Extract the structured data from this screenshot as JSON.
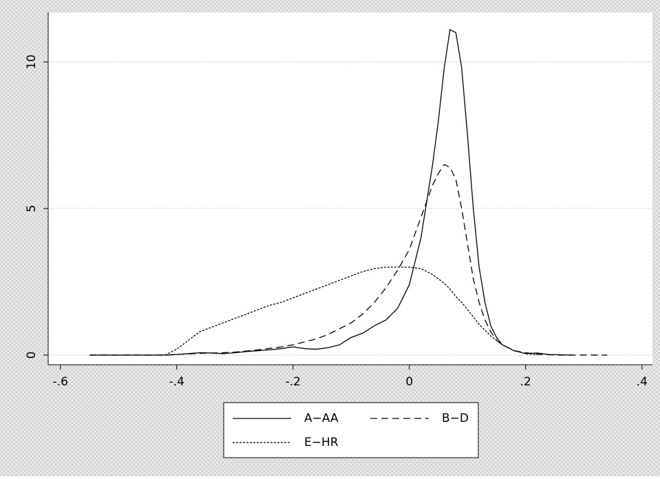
{
  "chart_data": {
    "type": "line",
    "x": [
      -0.55,
      -0.5,
      -0.45,
      -0.42,
      -0.4,
      -0.38,
      -0.36,
      -0.34,
      -0.32,
      -0.3,
      -0.28,
      -0.26,
      -0.24,
      -0.22,
      -0.2,
      -0.18,
      -0.16,
      -0.14,
      -0.12,
      -0.1,
      -0.08,
      -0.06,
      -0.04,
      -0.02,
      0,
      0.02,
      0.04,
      0.05,
      0.06,
      0.07,
      0.08,
      0.09,
      0.1,
      0.11,
      0.12,
      0.13,
      0.14,
      0.15,
      0.16,
      0.18,
      0.2,
      0.22,
      0.24,
      0.26,
      0.28,
      0.3,
      0.32,
      0.34
    ],
    "series": [
      {
        "name": "A−AA",
        "color": "#000000",
        "style": "solid",
        "values": [
          0,
          0,
          0,
          0,
          0.02,
          0.05,
          0.08,
          0.07,
          0.05,
          0.08,
          0.12,
          0.15,
          0.18,
          0.22,
          0.28,
          0.22,
          0.2,
          0.25,
          0.35,
          0.6,
          0.75,
          1.0,
          1.2,
          1.6,
          2.4,
          4.0,
          6.5,
          8.0,
          9.8,
          11.1,
          11.0,
          9.8,
          7.5,
          5.0,
          3.0,
          1.8,
          1.0,
          0.6,
          0.35,
          0.15,
          0.05,
          0.07,
          0.02,
          0.01,
          0,
          null,
          null,
          null
        ]
      },
      {
        "name": "B−D",
        "color": "#000000",
        "style": "dashed",
        "values": [
          0,
          0,
          0,
          0,
          0.02,
          0.04,
          0.06,
          0.07,
          0.08,
          0.1,
          0.14,
          0.18,
          0.23,
          0.28,
          0.35,
          0.45,
          0.55,
          0.7,
          0.9,
          1.1,
          1.4,
          1.8,
          2.3,
          2.9,
          3.6,
          4.7,
          5.8,
          6.2,
          6.5,
          6.4,
          6.0,
          5.0,
          3.8,
          2.6,
          1.8,
          1.2,
          0.8,
          0.5,
          0.35,
          0.15,
          0.08,
          0.03,
          0.01,
          0,
          0,
          0,
          0,
          0
        ]
      },
      {
        "name": "E−HR",
        "color": "#000000",
        "style": "dotted",
        "values": [
          null,
          null,
          null,
          0,
          0.2,
          0.5,
          0.8,
          0.95,
          1.1,
          1.25,
          1.4,
          1.55,
          1.7,
          1.8,
          1.95,
          2.1,
          2.25,
          2.4,
          2.55,
          2.7,
          2.85,
          2.95,
          3.0,
          3.0,
          3.0,
          2.95,
          2.75,
          2.6,
          2.45,
          2.25,
          2.0,
          1.8,
          1.55,
          1.3,
          1.05,
          0.85,
          0.65,
          0.5,
          0.35,
          0.15,
          0.05,
          0.01,
          null,
          null,
          null,
          null,
          null,
          null
        ]
      }
    ],
    "xlim": [
      -0.621,
      0.418
    ],
    "xticks": [
      {
        "value": -0.6,
        "label": "-.6"
      },
      {
        "value": -0.4,
        "label": "-.4"
      },
      {
        "value": -0.2,
        "label": "-.2"
      },
      0,
      {
        "value": 0.2,
        "label": ".2"
      },
      {
        "value": 0.4,
        "label": ".4"
      }
    ],
    "ylim": [
      -0.33,
      11.69
    ],
    "yticks": [
      0,
      5,
      10
    ],
    "grid": true,
    "legend": "bottom"
  }
}
